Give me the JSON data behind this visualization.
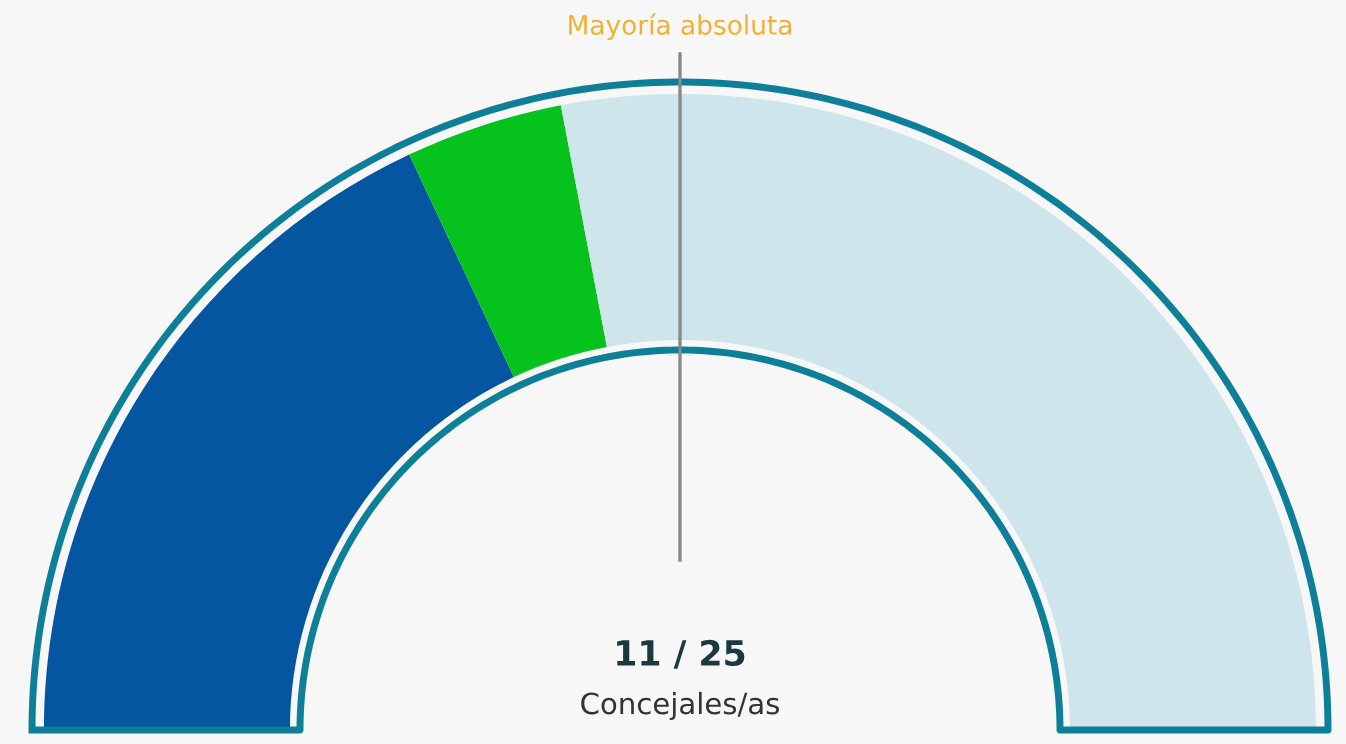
{
  "chart_data": {
    "type": "donut",
    "categories": [
      null,
      null,
      null
    ],
    "values": [
      36,
      8,
      56
    ],
    "colors": [
      "#0556a0",
      "#05c21d",
      "#cde5eb"
    ],
    "annotations": [
      "11 / 25",
      "Concejales/as",
      "Mayoría absoluta"
    ]
  }
}
